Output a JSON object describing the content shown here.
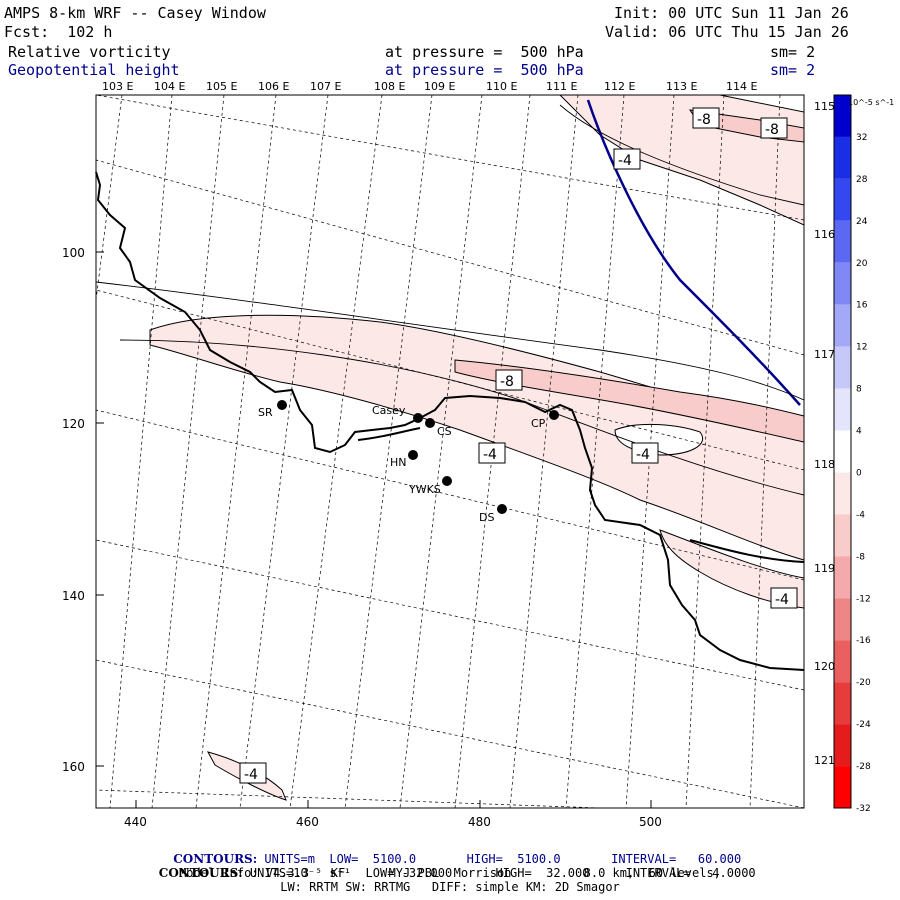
{
  "header": {
    "title": "AMPS 8-km WRF -- Casey Window",
    "init": "Init: 00 UTC Sun 11 Jan 26",
    "fcst": "Fcst:  102 h",
    "valid": "Valid: 06 UTC Thu 15 Jan 26",
    "field1": {
      "name": "Relative vorticity",
      "level": "at pressure =  500 hPa",
      "sm": "sm= 2"
    },
    "field2": {
      "name": "Geopotential height",
      "level": "at pressure =  500 hPa",
      "sm": "sm= 2"
    }
  },
  "longitude_labels_top": [
    "103 E",
    "104 E",
    "105 E",
    "106 E",
    "107 E",
    "108 E",
    "109 E",
    "110 E",
    "111 E",
    "112 E",
    "113 E",
    "114 E"
  ],
  "longitude_labels_right": [
    "115 E",
    "116 E",
    "117 E",
    "118 E",
    "119 E",
    "120 E",
    "121 E"
  ],
  "y_ticks": [
    "100",
    "120",
    "140",
    "160"
  ],
  "x_ticks": [
    "440",
    "460",
    "480",
    "500"
  ],
  "stations": [
    {
      "label": "SR"
    },
    {
      "label": "Casey"
    },
    {
      "label": "CS"
    },
    {
      "label": "CP"
    },
    {
      "label": "HN"
    },
    {
      "label": "YWKS"
    },
    {
      "label": "DS"
    }
  ],
  "contour_labels": [
    "-8",
    "-8",
    "-4",
    "-8",
    "-4",
    "-4",
    "-4",
    "-4"
  ],
  "colorbar": {
    "unit": "10^-5 s^-1",
    "levels": [
      "32",
      "28",
      "24",
      "20",
      "16",
      "12",
      "8",
      "4",
      "0",
      "-4",
      "-8",
      "-12",
      "-16",
      "-20",
      "-24",
      "-28",
      "-32"
    ],
    "colors": [
      "#0000cc",
      "#1a2ee6",
      "#3548f0",
      "#5a68f2",
      "#8088f5",
      "#a3a8f7",
      "#c6c8fa",
      "#e4e5fc",
      "#ffffff",
      "#fde8e8",
      "#f9cccc",
      "#f4aaaa",
      "#ef8686",
      "#ea6060",
      "#e63c3c",
      "#e41c1c",
      "#ff0000"
    ]
  },
  "footer": {
    "line1_label": "CONTOURS:",
    "line1": "UNITS=m  LOW=  5100.0       HIGH=  5100.0       INTERVAL=   60.000",
    "line2_label": "CONTOURS:",
    "line2": "UNITS=10⁻⁵ s⁻¹  LOW= -32.000      HIGH=  32.000     INTERVAL=   4.0000",
    "line3": "Model Info: V4.3.3   KF      MYJ PBL  Morrison          8.0 km,  60 levels,",
    "line4": "LW: RRTM SW: RRTMG   DIFF: simple KM: 2D Smagor"
  }
}
